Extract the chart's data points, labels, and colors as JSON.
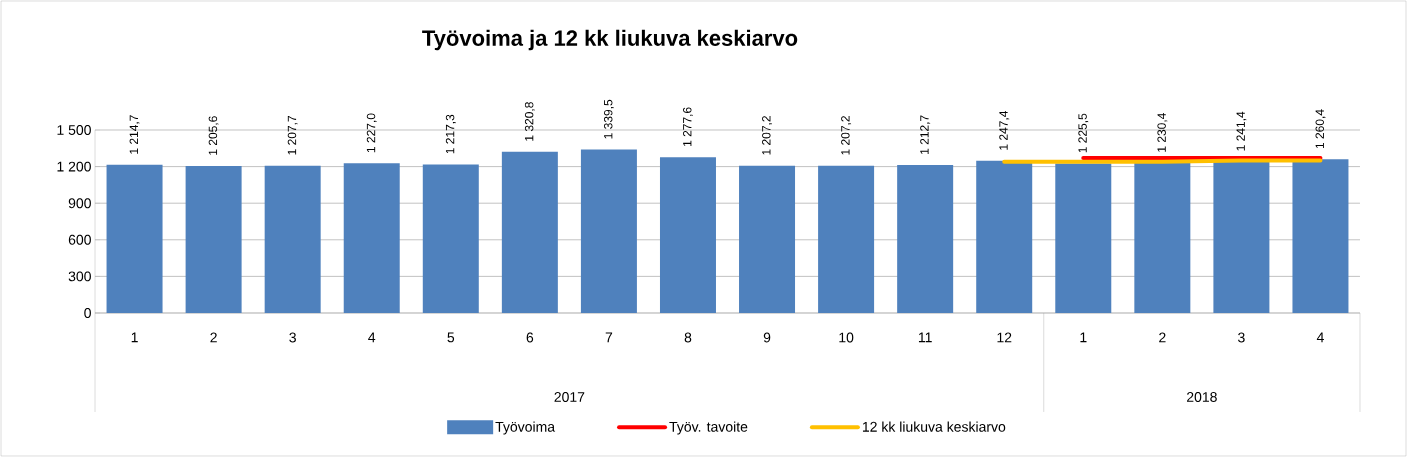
{
  "chart_data": {
    "type": "bar",
    "title": "Työvoima ja 12 kk liukuva keskiarvo",
    "categories": [
      "1",
      "2",
      "3",
      "4",
      "5",
      "6",
      "7",
      "8",
      "9",
      "10",
      "11",
      "12",
      "1",
      "2",
      "3",
      "4"
    ],
    "series": [
      {
        "name": "Työvoima",
        "color": "#4f81bd",
        "values": [
          1214.7,
          1205.6,
          1207.7,
          1227.0,
          1217.3,
          1320.8,
          1339.5,
          1277.6,
          1207.2,
          1207.2,
          1212.7,
          1247.4,
          1225.5,
          1230.4,
          1241.4,
          1260.4
        ],
        "value_labels": [
          "1 214,7",
          "1 205,6",
          "1 207,7",
          "1 227,0",
          "1 217,3",
          "1 320,8",
          "1 339,5",
          "1 277,6",
          "1 207,2",
          "1 207,2",
          "1 212,7",
          "1 247,4",
          "1 225,5",
          "1 230,4",
          "1 241,4",
          "1 260,4"
        ]
      },
      {
        "name": "Työv. tavoite",
        "type": "line",
        "color": "#ff0000",
        "values": [
          null,
          null,
          null,
          null,
          null,
          null,
          null,
          null,
          null,
          null,
          null,
          null,
          1270,
          1270,
          1270,
          1270
        ]
      },
      {
        "name": "12 kk liukuva keskiarvo",
        "type": "line",
        "color": "#ffc000",
        "values": [
          null,
          null,
          null,
          null,
          null,
          null,
          null,
          null,
          null,
          null,
          null,
          1240,
          1240,
          1240,
          1250,
          1250
        ]
      }
    ],
    "ylim": [
      0,
      1500
    ],
    "yticks": [
      0,
      300,
      600,
      900,
      {
        "value": 1200,
        "label": "1 200"
      },
      {
        "value": 1500,
        "label": "1 500"
      }
    ],
    "grid": "y",
    "legend": "bottom",
    "annotations": [
      "2017",
      "2018"
    ]
  }
}
